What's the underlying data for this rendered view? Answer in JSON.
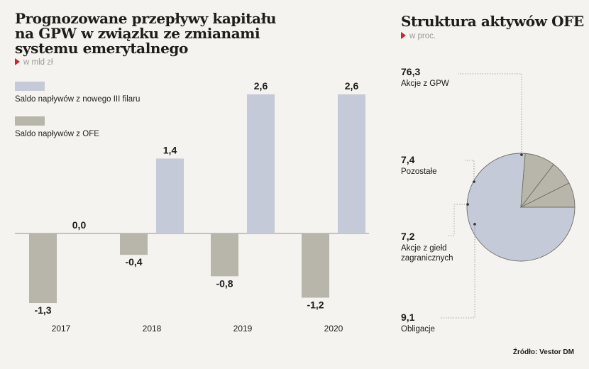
{
  "colors": {
    "background": "#f4f3ef",
    "pillar3": "#c5cad9",
    "ofe": "#b8b6aa",
    "pie_main": "#c5cad9",
    "pie_other": "#b8b6aa",
    "accent_red": "#d0222b"
  },
  "left": {
    "title_lines": [
      "Prognozowane przepływy kapitału",
      "na GPW w związku ze zmianami",
      "systemu emerytalnego"
    ],
    "unit": "w mld zł"
  },
  "right": {
    "title": "Struktura aktywów OFE",
    "unit": "w proc."
  },
  "source": "Źródło: Vestor DM",
  "chart_data": [
    {
      "type": "bar",
      "title": "Prognozowane przepływy kapitału na GPW w związku ze zmianami systemu emerytalnego",
      "unit": "w mld zł",
      "categories": [
        "2017",
        "2018",
        "2019",
        "2020"
      ],
      "series": [
        {
          "name": "Saldo napływów z OFE",
          "values": [
            -1.3,
            -0.4,
            -0.8,
            -1.2
          ]
        },
        {
          "name": "Saldo napływów z nowego III filaru",
          "values": [
            0.0,
            1.4,
            2.6,
            2.6
          ]
        }
      ],
      "value_labels": [
        [
          "-1,3",
          "-0,4",
          "-0,8",
          "-1,2"
        ],
        [
          "0,0",
          "1,4",
          "2,6",
          "2,6"
        ]
      ],
      "ylim": [
        -1.3,
        2.6
      ],
      "grid": false,
      "legend_position": "top-left"
    },
    {
      "type": "pie",
      "title": "Struktura aktywów OFE",
      "unit": "w proc.",
      "slices": [
        {
          "label": "Akcje z GPW",
          "value": 76.3,
          "value_label": "76,3"
        },
        {
          "label": "Pozostałe",
          "value": 7.4,
          "value_label": "7,4"
        },
        {
          "label": "Akcje z giełd zagranicznych",
          "label_lines": [
            "Akcje z giełd",
            "zagranicznych"
          ],
          "value": 7.2,
          "value_label": "7,2"
        },
        {
          "label": "Obligacje",
          "value": 9.1,
          "value_label": "9,1"
        }
      ]
    }
  ]
}
